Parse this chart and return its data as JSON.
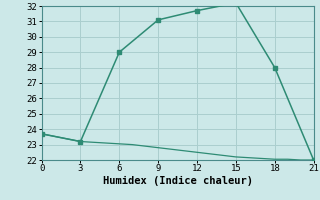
{
  "xlabel": "Humidex (Indice chaleur)",
  "line1_x": [
    0,
    3,
    6,
    9,
    12,
    15,
    18,
    21
  ],
  "line1_y": [
    23.7,
    23.2,
    29.0,
    31.1,
    31.7,
    32.2,
    28.0,
    22.0
  ],
  "line2_x": [
    0,
    3,
    4,
    5,
    6,
    7,
    8,
    9,
    10,
    11,
    12,
    13,
    14,
    15,
    16,
    17,
    18,
    19,
    20,
    21
  ],
  "line2_y": [
    23.7,
    23.2,
    23.15,
    23.1,
    23.05,
    23.0,
    22.9,
    22.8,
    22.7,
    22.6,
    22.5,
    22.4,
    22.3,
    22.2,
    22.15,
    22.1,
    22.05,
    22.05,
    22.0,
    22.0
  ],
  "line_color": "#2e8b74",
  "bg_color": "#cce8e8",
  "grid_color": "#aacece",
  "ylim": [
    22,
    32
  ],
  "xlim": [
    0,
    21
  ],
  "yticks": [
    22,
    23,
    24,
    25,
    26,
    27,
    28,
    29,
    30,
    31,
    32
  ],
  "xticks": [
    0,
    3,
    6,
    9,
    12,
    15,
    18,
    21
  ],
  "tick_fontsize": 6.5,
  "xlabel_fontsize": 7.5
}
